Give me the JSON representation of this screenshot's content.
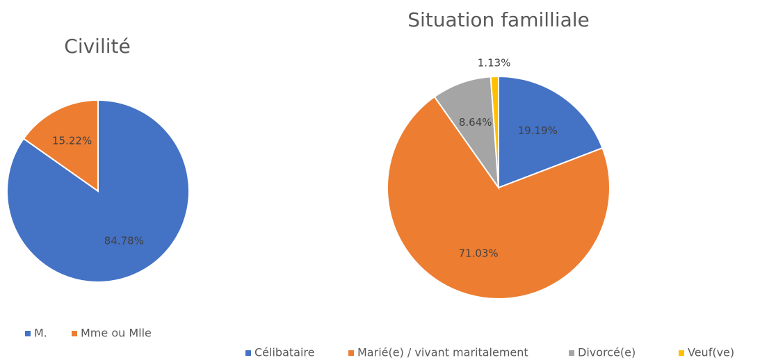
{
  "chart_data": [
    {
      "type": "pie",
      "title": "Civilité",
      "categories": [
        "M.",
        "Mme ou Mlle"
      ],
      "values": [
        84.78,
        15.22
      ],
      "value_labels": [
        "84.78%",
        "15.22%"
      ],
      "colors": [
        "#4472c4",
        "#ed7d31"
      ],
      "legend": "bottom"
    },
    {
      "type": "pie",
      "title": "Situation familliale",
      "categories": [
        "Célibataire",
        "Marié(e) / vivant maritalement",
        "Divorcé(e)",
        "Veuf(ve)"
      ],
      "values": [
        19.19,
        71.03,
        8.64,
        1.13
      ],
      "value_labels": [
        "19.19%",
        "71.03%",
        "8.64%",
        "1.13%"
      ],
      "colors": [
        "#4472c4",
        "#ed7d31",
        "#a5a5a5",
        "#ffc000"
      ],
      "legend": "bottom"
    }
  ]
}
